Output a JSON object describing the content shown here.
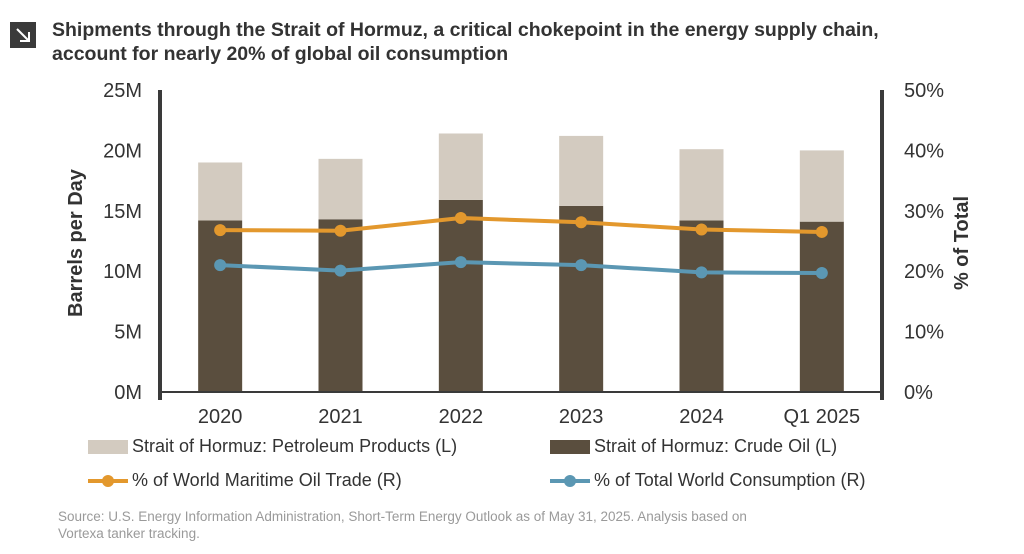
{
  "title_lines": [
    "Shipments through the Strait of Hormuz, a critical chokepoint in the energy supply chain,",
    "account for nearly 20% of global oil consumption"
  ],
  "icon": "arrow-down-right-icon",
  "colors": {
    "petroleum": "#d3cbc0",
    "crude": "#5a4e3e",
    "maritime": "#e3982d",
    "consumption": "#5b97b3",
    "axis": "#3a3a3a"
  },
  "chart_data": {
    "type": "bar",
    "stacked": true,
    "categories": [
      "2020",
      "2021",
      "2022",
      "2023",
      "2024",
      "Q1 2025"
    ],
    "left_axis": {
      "label": "Barrels per Day",
      "range": [
        0,
        25
      ],
      "ticks": [
        0,
        5,
        10,
        15,
        20,
        25
      ],
      "tick_labels": [
        "0M",
        "5M",
        "10M",
        "15M",
        "20M",
        "25M"
      ]
    },
    "right_axis": {
      "label": "% of Total",
      "range": [
        0,
        50
      ],
      "ticks": [
        0,
        10,
        20,
        30,
        40,
        50
      ],
      "tick_labels": [
        "0%",
        "10%",
        "20%",
        "30%",
        "40%",
        "50%"
      ]
    },
    "series": [
      {
        "name": "Strait of Hormuz: Crude Oil (L)",
        "type": "bar",
        "axis": "left",
        "values": [
          14.2,
          14.3,
          15.9,
          15.4,
          14.2,
          14.1
        ]
      },
      {
        "name": "Strait of Hormuz: Petroleum Products (L)",
        "type": "bar",
        "axis": "left",
        "values": [
          4.8,
          5.0,
          5.5,
          5.8,
          5.9,
          5.9
        ]
      },
      {
        "name": "% of World Maritime Oil Trade (R)",
        "type": "line",
        "axis": "right",
        "values": [
          26.8,
          26.7,
          28.8,
          28.1,
          26.9,
          26.5
        ]
      },
      {
        "name": "% of Total World Consumption (R)",
        "type": "line",
        "axis": "right",
        "values": [
          21.0,
          20.1,
          21.5,
          21.0,
          19.8,
          19.7
        ]
      }
    ],
    "grid": false,
    "legend_position": "bottom"
  },
  "legend": {
    "petroleum": "Strait of Hormuz: Petroleum Products (L)",
    "crude": "Strait of Hormuz: Crude Oil (L)",
    "maritime": "% of World Maritime Oil Trade (R)",
    "consumption": "% of Total World Consumption (R)"
  },
  "source_lines": [
    "Source:  U.S. Energy Information Administration, Short-Term Energy Outlook as of May 31, 2025. Analysis based on",
    "Vortexa tanker tracking."
  ]
}
